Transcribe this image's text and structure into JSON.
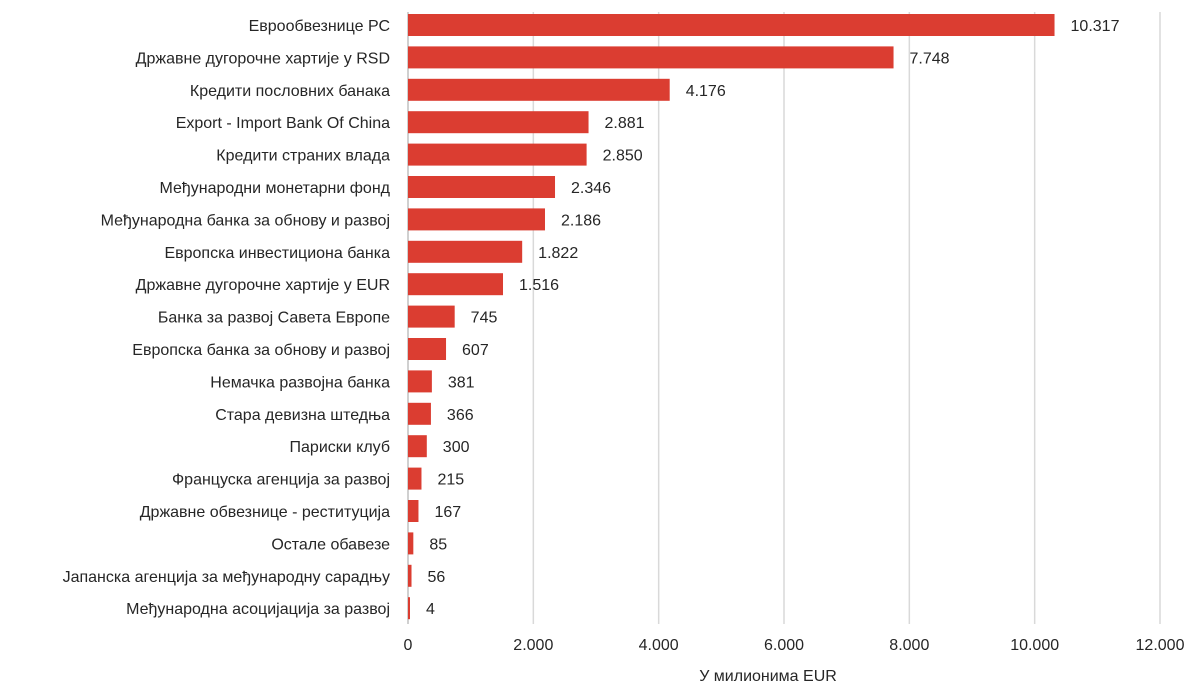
{
  "chart_data": {
    "type": "bar",
    "orientation": "horizontal",
    "categories": [
      "Еврообвезнице РС",
      "Државне дугорочне хартије у RSD",
      "Кредити пословних банака",
      "Export - Import Bank Of China",
      "Кредити страних влада",
      "Међународни монетарни фонд",
      "Међународна банка за обнову и развој",
      "Европска инвестициона банка",
      "Државне дугорочне хартије  у EUR",
      "Банка за развој Савета Европе",
      "Европска банка за обнову и развој",
      "Немачка развојна банка",
      "Стара девизна штедња",
      "Париски клуб",
      "Француска агенција за развој",
      "Државне обвезнице - реституција",
      "Остале обавезе",
      "Јапанска агенција за међународну сарадњу",
      "Међународна асоцијација за развој"
    ],
    "values": [
      10317,
      7748,
      4176,
      2881,
      2850,
      2346,
      2186,
      1822,
      1516,
      745,
      607,
      381,
      366,
      300,
      215,
      167,
      85,
      56,
      4
    ],
    "value_labels": [
      "10.317",
      "7.748",
      "4.176",
      "2.881",
      "2.850",
      "2.346",
      "2.186",
      "1.822",
      "1.516",
      "745",
      "607",
      "381",
      "366",
      "300",
      "215",
      "167",
      "85",
      "56",
      "4"
    ],
    "xlim": [
      0,
      12000
    ],
    "xticks": [
      0,
      2000,
      4000,
      6000,
      8000,
      10000,
      12000
    ],
    "xtick_labels": [
      "0",
      "2.000",
      "4.000",
      "6.000",
      "8.000",
      "10.000",
      "12.000"
    ],
    "xlabel": "У милионима EUR",
    "ylabel": "",
    "title": "",
    "grid": "vertical",
    "bar_color": "#db3d31"
  }
}
